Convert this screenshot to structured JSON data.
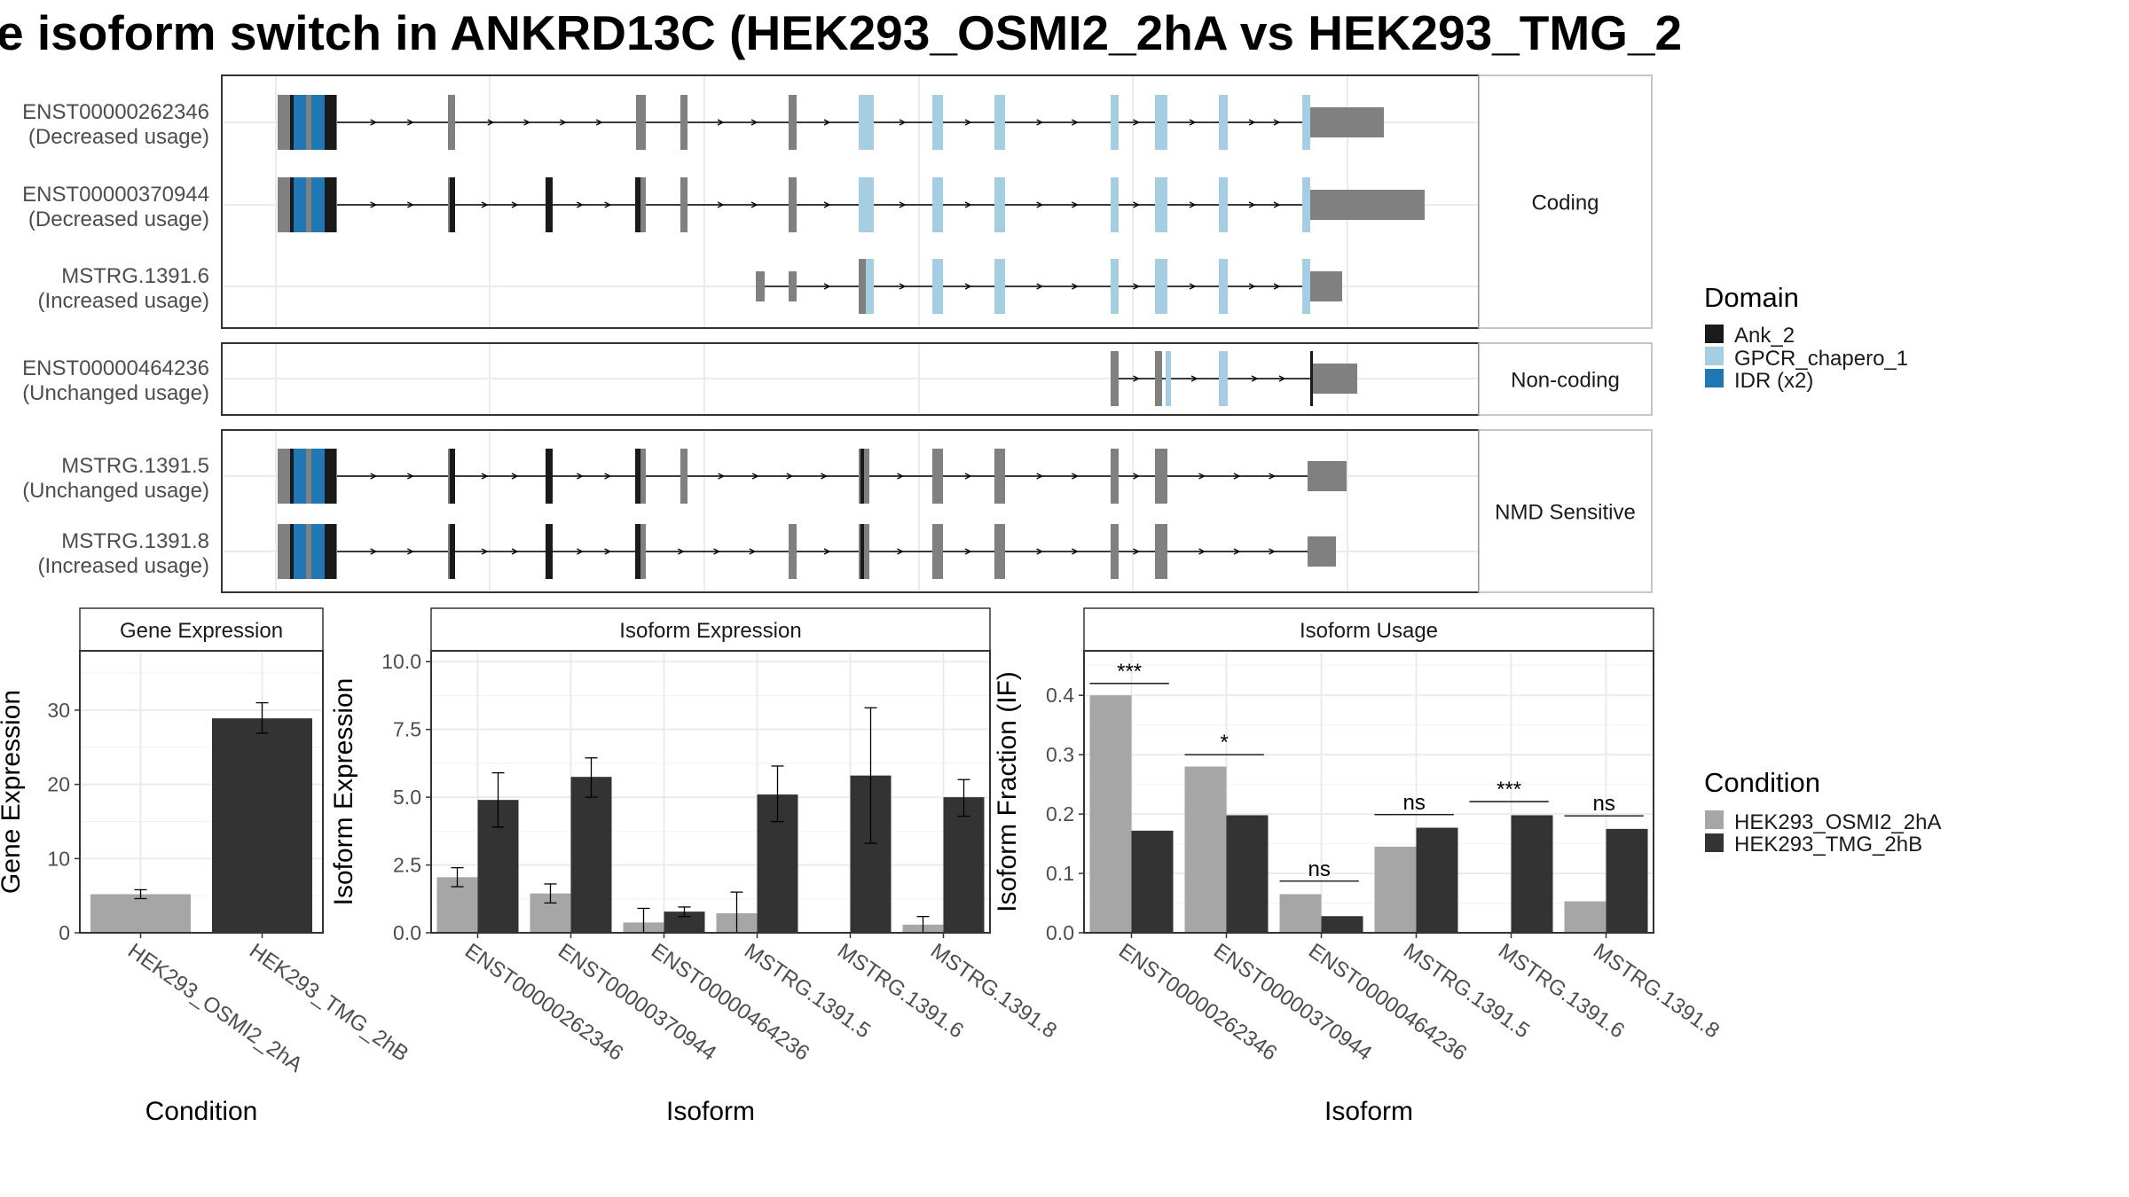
{
  "title": "e isoform switch in ANKRD13C (HEK293_OSMI2_2hA vs HEK293_TMG_2",
  "colors": {
    "exon": "#808080",
    "intron": "#000000",
    "ank2": "#1a1a1a",
    "gpcr": "#a6cee3",
    "idr": "#1f78b4",
    "cond1": "#a6a6a6",
    "cond2": "#333333"
  },
  "structure": {
    "panels": [
      {
        "label": "Coding",
        "transcripts": [
          {
            "id": "ENST00000262346",
            "usage": "(Decreased usage)"
          },
          {
            "id": "ENST00000370944",
            "usage": "(Decreased usage)"
          },
          {
            "id": "MSTRG.1391.6",
            "usage": "(Increased usage)"
          }
        ]
      },
      {
        "label": "Non-coding",
        "transcripts": [
          {
            "id": "ENST00000464236",
            "usage": "(Unchanged usage)"
          }
        ]
      },
      {
        "label": "NMD Sensitive",
        "transcripts": [
          {
            "id": "MSTRG.1391.5",
            "usage": "(Unchanged usage)"
          },
          {
            "id": "MSTRG.1391.8",
            "usage": "(Increased usage)"
          }
        ]
      }
    ]
  },
  "legends": {
    "domain": {
      "title": "Domain",
      "items": [
        {
          "label": "Ank_2",
          "color": "#1a1a1a"
        },
        {
          "label": "GPCR_chapero_1",
          "color": "#a6cee3"
        },
        {
          "label": "IDR (x2)",
          "color": "#1f78b4"
        }
      ]
    },
    "condition": {
      "title": "Condition",
      "items": [
        {
          "label": "HEK293_OSMI2_2hA",
          "color": "#a6a6a6"
        },
        {
          "label": "HEK293_TMG_2hB",
          "color": "#333333"
        }
      ]
    }
  },
  "chart_data": [
    {
      "type": "bar",
      "title": "Gene Expression",
      "xlabel": "Condition",
      "ylabel": "Gene Expression",
      "ylim": [
        0,
        38
      ],
      "yticks": [
        0,
        10,
        20,
        30
      ],
      "categories": [
        "HEK293_OSMI2_2hA",
        "HEK293_TMG_2hB"
      ],
      "values": [
        5.2,
        28.9
      ],
      "errors": [
        [
          4.6,
          5.8
        ],
        [
          26.9,
          31.0
        ]
      ]
    },
    {
      "type": "bar",
      "title": "Isoform Expression",
      "xlabel": "Isoform",
      "ylabel": "Isoform Expression",
      "ylim": [
        0,
        10.4
      ],
      "yticks": [
        0.0,
        2.5,
        5.0,
        7.5,
        10.0
      ],
      "ytick_labels": [
        "0.0",
        "2.5",
        "5.0",
        "7.5",
        "10.0"
      ],
      "categories": [
        "ENST00000262346",
        "ENST00000370944",
        "ENST00000464236",
        "MSTRG.1391.5",
        "MSTRG.1391.6",
        "MSTRG.1391.8"
      ],
      "series": [
        {
          "name": "HEK293_OSMI2_2hA",
          "values": [
            2.05,
            1.45,
            0.38,
            0.72,
            0.0,
            0.3
          ],
          "errors": [
            [
              1.7,
              2.4
            ],
            [
              1.1,
              1.8
            ],
            [
              0.0,
              0.9
            ],
            [
              0.0,
              1.5
            ],
            [
              0.0,
              0.0
            ],
            [
              0.0,
              0.6
            ]
          ]
        },
        {
          "name": "HEK293_TMG_2hB",
          "values": [
            4.9,
            5.75,
            0.78,
            5.1,
            5.8,
            5.0
          ],
          "errors": [
            [
              3.9,
              5.9
            ],
            [
              5.0,
              6.45
            ],
            [
              0.6,
              0.95
            ],
            [
              4.1,
              6.15
            ],
            [
              3.3,
              8.3
            ],
            [
              4.3,
              5.65
            ]
          ]
        }
      ]
    },
    {
      "type": "bar",
      "title": "Isoform Usage",
      "xlabel": "Isoform",
      "ylabel": "Isoform Fraction (IF)",
      "ylim": [
        0,
        0.475
      ],
      "yticks": [
        0.0,
        0.1,
        0.2,
        0.3,
        0.4
      ],
      "ytick_labels": [
        "0.0",
        "0.1",
        "0.2",
        "0.3",
        "0.4"
      ],
      "categories": [
        "ENST00000262346",
        "ENST00000370944",
        "ENST00000464236",
        "MSTRG.1391.5",
        "MSTRG.1391.6",
        "MSTRG.1391.8"
      ],
      "series": [
        {
          "name": "HEK293_OSMI2_2hA",
          "values": [
            0.4,
            0.28,
            0.065,
            0.145,
            0.0,
            0.053
          ]
        },
        {
          "name": "HEK293_TMG_2hB",
          "values": [
            0.172,
            0.198,
            0.028,
            0.177,
            0.198,
            0.175
          ]
        }
      ],
      "significance": [
        "***",
        "*",
        "ns",
        "ns",
        "***",
        "ns"
      ],
      "significance_y": [
        0.42,
        0.3,
        0.087,
        0.199,
        0.221,
        0.197
      ]
    }
  ]
}
